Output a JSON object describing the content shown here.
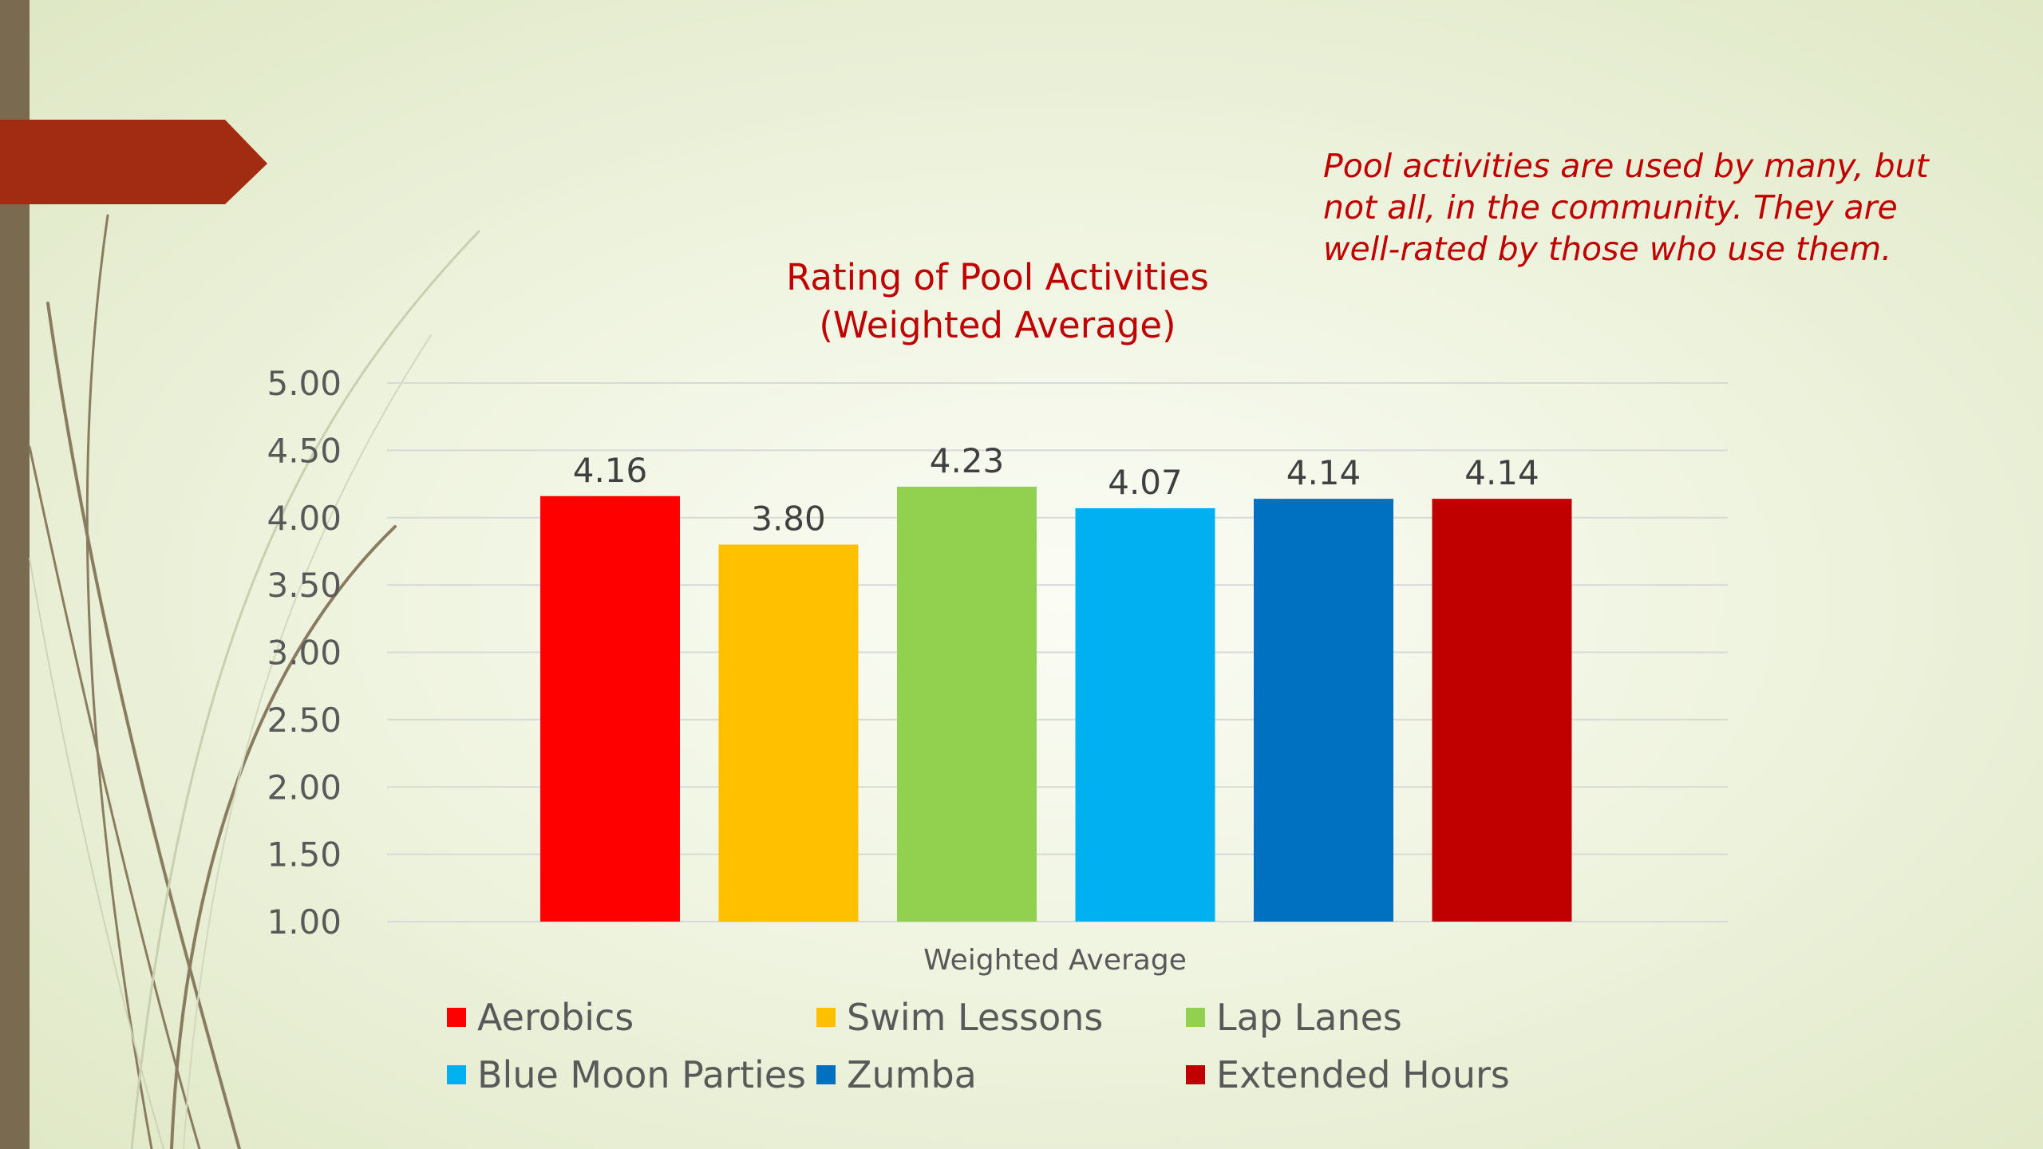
{
  "note": "Pool activities are used by many, but not all, in the community. They are well-rated by those who use them.",
  "chart_data": {
    "type": "bar",
    "title_line1": "Rating of Pool Activities",
    "title_line2": "(Weighted Average)",
    "xlabel": "Weighted Average",
    "ylabel": "",
    "ylim": [
      1.0,
      5.0
    ],
    "y_ticks": [
      "1.00",
      "1.50",
      "2.00",
      "2.50",
      "3.00",
      "3.50",
      "4.00",
      "4.50",
      "5.00"
    ],
    "grid": true,
    "legend_position": "bottom",
    "series": [
      {
        "name": "Aerobics",
        "value": 4.16,
        "label": "4.16",
        "color": "#ff0000"
      },
      {
        "name": "Swim Lessons",
        "value": 3.8,
        "label": "3.80",
        "color": "#ffc000"
      },
      {
        "name": "Lap Lanes",
        "value": 4.23,
        "label": "4.23",
        "color": "#92d050"
      },
      {
        "name": "Blue Moon Parties",
        "value": 4.07,
        "label": "4.07",
        "color": "#00b0f0"
      },
      {
        "name": "Zumba",
        "value": 4.14,
        "label": "4.14",
        "color": "#0070c0"
      },
      {
        "name": "Extended Hours",
        "value": 4.14,
        "label": "4.14",
        "color": "#c00000"
      }
    ]
  }
}
